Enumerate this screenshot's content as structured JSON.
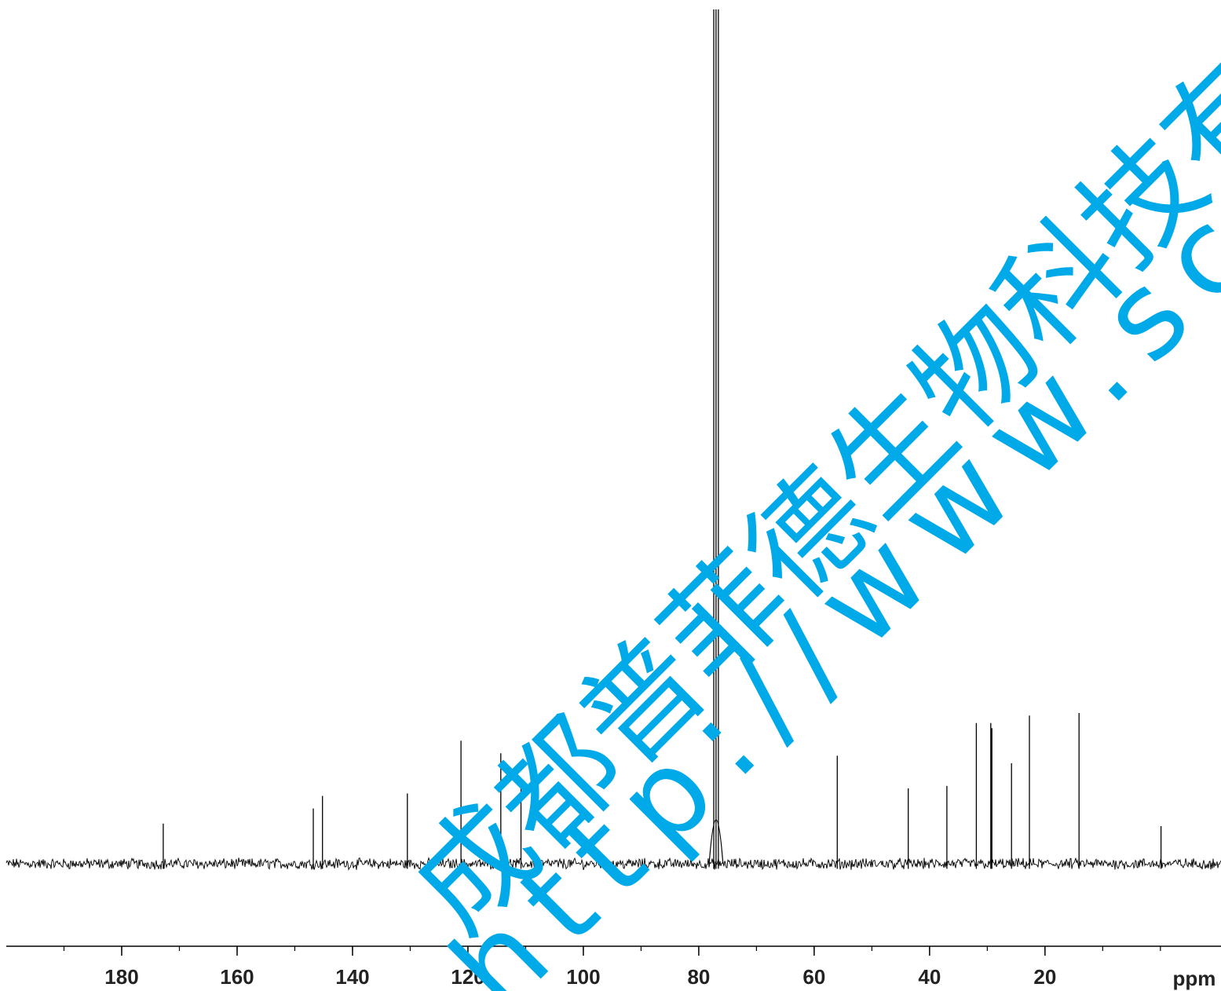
{
  "chart_data": {
    "type": "line",
    "title": "",
    "xlabel": "ppm",
    "ylabel": "",
    "x_reversed": true,
    "xlim": [
      200.0,
      -10.5
    ],
    "ylim": [
      -0.22,
      3.34
    ],
    "grid": false,
    "x_ticks": [
      180,
      160,
      140,
      120,
      100,
      80,
      60,
      40,
      20
    ],
    "x_tick_labels": [
      "180",
      "160",
      "140",
      "120",
      "100",
      "80",
      "60",
      "40",
      "20"
    ],
    "x_minor_step": 10,
    "baseline": 0.0,
    "noise_amplitude": 0.018,
    "series_color": "#000000",
    "peaks": [
      {
        "ppm": 172.8,
        "height": 0.16
      },
      {
        "ppm": 146.8,
        "height": 0.22
      },
      {
        "ppm": 145.2,
        "height": 0.27
      },
      {
        "ppm": 130.5,
        "height": 0.28
      },
      {
        "ppm": 121.2,
        "height": 0.49
      },
      {
        "ppm": 114.3,
        "height": 0.44
      },
      {
        "ppm": 110.8,
        "height": 0.32
      },
      {
        "ppm": 77.4,
        "height": 3.4,
        "note": ""
      },
      {
        "ppm": 77.0,
        "height": 3.4
      },
      {
        "ppm": 76.6,
        "height": 3.4
      },
      {
        "ppm": 56.0,
        "height": 0.43
      },
      {
        "ppm": 43.7,
        "height": 0.3
      },
      {
        "ppm": 37.0,
        "height": 0.31
      },
      {
        "ppm": 31.9,
        "height": 0.56
      },
      {
        "ppm": 29.4,
        "height": 0.56
      },
      {
        "ppm": 29.2,
        "height": 0.54
      },
      {
        "ppm": 25.8,
        "height": 0.4
      },
      {
        "ppm": 22.7,
        "height": 0.59
      },
      {
        "ppm": 14.1,
        "height": 0.6
      },
      {
        "ppm": -0.1,
        "height": 0.15
      }
    ]
  },
  "watermark": {
    "line1": "成都普菲德生物科技有限公",
    "line2": "http://www.sc-victory",
    "color": "#00a9e8"
  }
}
